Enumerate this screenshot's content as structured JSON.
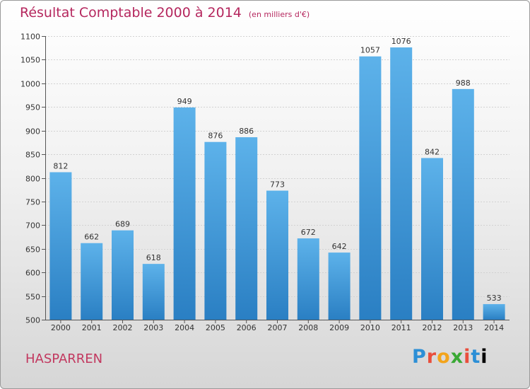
{
  "header": {
    "title": "Résultat Comptable 2000 à 2014",
    "subtitle": "(en milliers d'€)"
  },
  "footer": {
    "location": "HASPARREN",
    "logo_letters": [
      "P",
      "r",
      "o",
      "x",
      "i",
      "t",
      "i"
    ]
  },
  "colors": {
    "title": "#b5275e",
    "bar_top": "#5db2ea",
    "bar_bottom": "#2a7fc3"
  },
  "chart_data": {
    "type": "bar",
    "title": "Résultat Comptable 2000 à 2014",
    "subtitle": "(en milliers d'€)",
    "categories": [
      "2000",
      "2001",
      "2002",
      "2003",
      "2004",
      "2005",
      "2006",
      "2007",
      "2008",
      "2009",
      "2010",
      "2011",
      "2012",
      "2013",
      "2014"
    ],
    "values": [
      812,
      662,
      689,
      618,
      949,
      876,
      886,
      773,
      672,
      642,
      1057,
      1076,
      842,
      988,
      533
    ],
    "ylim": [
      500,
      1100
    ],
    "yticks": [
      500,
      550,
      600,
      650,
      700,
      750,
      800,
      850,
      900,
      950,
      1000,
      1050,
      1100
    ],
    "grid": true,
    "legend": "none",
    "xlabel": "",
    "ylabel": ""
  }
}
